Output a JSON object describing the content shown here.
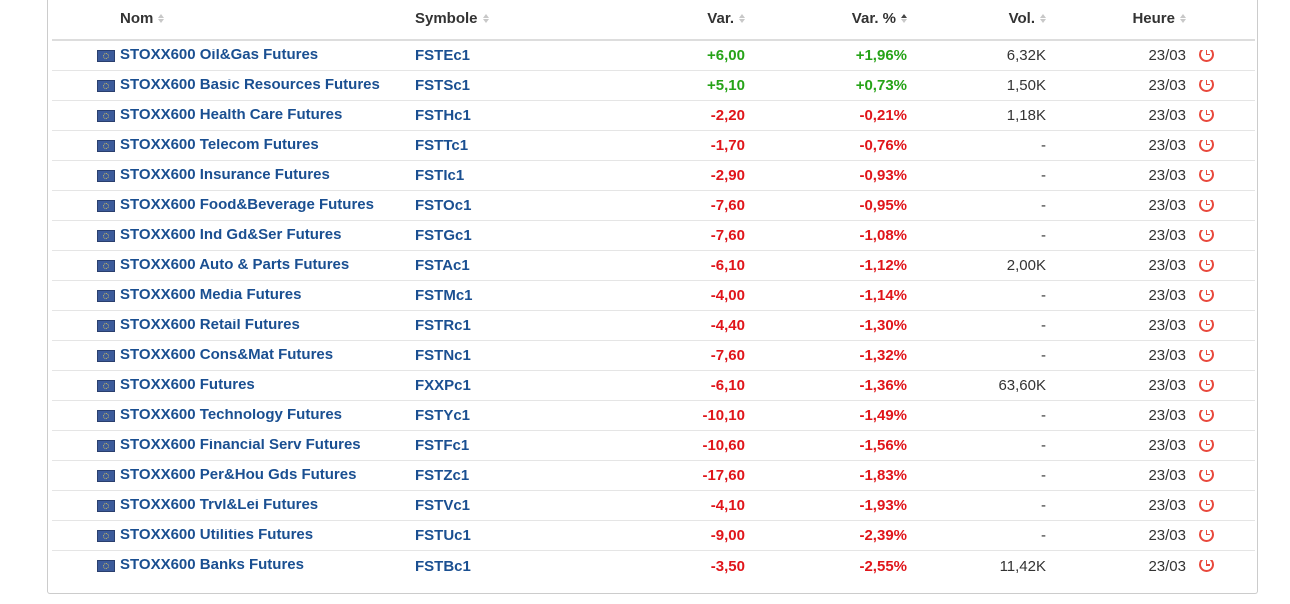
{
  "colors": {
    "link": "#1a4f91",
    "positive": "#26a317",
    "negative": "#e0151a",
    "clock": "#e8483c"
  },
  "columns": {
    "nom": "Nom",
    "symbole": "Symbole",
    "var": "Var.",
    "var_pct": "Var. %",
    "vol": "Vol.",
    "heure": "Heure"
  },
  "sort_active_column": "var_pct",
  "rows": [
    {
      "flag": "eu-flag-icon",
      "nom": "STOXX600 Oil&Gas Futures",
      "symbole": "FSTEc1",
      "var": "+6,00",
      "var_pct": "+1,96%",
      "vol": "6,32K",
      "heure": "23/03",
      "trend": "pos"
    },
    {
      "flag": "eu-flag-icon",
      "nom": "STOXX600 Basic Resources Futures",
      "symbole": "FSTSc1",
      "var": "+5,10",
      "var_pct": "+0,73%",
      "vol": "1,50K",
      "heure": "23/03",
      "trend": "pos"
    },
    {
      "flag": "eu-flag-icon",
      "nom": "STOXX600 Health Care Futures",
      "symbole": "FSTHc1",
      "var": "-2,20",
      "var_pct": "-0,21%",
      "vol": "1,18K",
      "heure": "23/03",
      "trend": "neg"
    },
    {
      "flag": "eu-flag-icon",
      "nom": "STOXX600 Telecom Futures",
      "symbole": "FSTTc1",
      "var": "-1,70",
      "var_pct": "-0,76%",
      "vol": "-",
      "heure": "23/03",
      "trend": "neg"
    },
    {
      "flag": "eu-flag-icon",
      "nom": "STOXX600 Insurance Futures",
      "symbole": "FSTIc1",
      "var": "-2,90",
      "var_pct": "-0,93%",
      "vol": "-",
      "heure": "23/03",
      "trend": "neg"
    },
    {
      "flag": "eu-flag-icon",
      "nom": "STOXX600 Food&Beverage Futures",
      "symbole": "FSTOc1",
      "var": "-7,60",
      "var_pct": "-0,95%",
      "vol": "-",
      "heure": "23/03",
      "trend": "neg"
    },
    {
      "flag": "eu-flag-icon",
      "nom": "STOXX600 Ind Gd&Ser Futures",
      "symbole": "FSTGc1",
      "var": "-7,60",
      "var_pct": "-1,08%",
      "vol": "-",
      "heure": "23/03",
      "trend": "neg"
    },
    {
      "flag": "eu-flag-icon",
      "nom": "STOXX600 Auto & Parts Futures",
      "symbole": "FSTAc1",
      "var": "-6,10",
      "var_pct": "-1,12%",
      "vol": "2,00K",
      "heure": "23/03",
      "trend": "neg"
    },
    {
      "flag": "eu-flag-icon",
      "nom": "STOXX600 Media Futures",
      "symbole": "FSTMc1",
      "var": "-4,00",
      "var_pct": "-1,14%",
      "vol": "-",
      "heure": "23/03",
      "trend": "neg"
    },
    {
      "flag": "eu-flag-icon",
      "nom": "STOXX600 Retail Futures",
      "symbole": "FSTRc1",
      "var": "-4,40",
      "var_pct": "-1,30%",
      "vol": "-",
      "heure": "23/03",
      "trend": "neg"
    },
    {
      "flag": "eu-flag-icon",
      "nom": "STOXX600 Cons&Mat Futures",
      "symbole": "FSTNc1",
      "var": "-7,60",
      "var_pct": "-1,32%",
      "vol": "-",
      "heure": "23/03",
      "trend": "neg"
    },
    {
      "flag": "eu-flag-icon",
      "nom": "STOXX600 Futures",
      "symbole": "FXXPc1",
      "var": "-6,10",
      "var_pct": "-1,36%",
      "vol": "63,60K",
      "heure": "23/03",
      "trend": "neg"
    },
    {
      "flag": "eu-flag-icon",
      "nom": "STOXX600 Technology Futures",
      "symbole": "FSTYc1",
      "var": "-10,10",
      "var_pct": "-1,49%",
      "vol": "-",
      "heure": "23/03",
      "trend": "neg"
    },
    {
      "flag": "eu-flag-icon",
      "nom": "STOXX600 Financial Serv Futures",
      "symbole": "FSTFc1",
      "var": "-10,60",
      "var_pct": "-1,56%",
      "vol": "-",
      "heure": "23/03",
      "trend": "neg"
    },
    {
      "flag": "eu-flag-icon",
      "nom": "STOXX600 Per&Hou Gds Futures",
      "symbole": "FSTZc1",
      "var": "-17,60",
      "var_pct": "-1,83%",
      "vol": "-",
      "heure": "23/03",
      "trend": "neg"
    },
    {
      "flag": "eu-flag-icon",
      "nom": "STOXX600 Trvl&Lei Futures",
      "symbole": "FSTVc1",
      "var": "-4,10",
      "var_pct": "-1,93%",
      "vol": "-",
      "heure": "23/03",
      "trend": "neg"
    },
    {
      "flag": "eu-flag-icon",
      "nom": "STOXX600 Utilities Futures",
      "symbole": "FSTUc1",
      "var": "-9,00",
      "var_pct": "-2,39%",
      "vol": "-",
      "heure": "23/03",
      "trend": "neg"
    },
    {
      "flag": "eu-flag-icon",
      "nom": "STOXX600 Banks Futures",
      "symbole": "FSTBc1",
      "var": "-3,50",
      "var_pct": "-2,55%",
      "vol": "11,42K",
      "heure": "23/03",
      "trend": "neg"
    }
  ]
}
